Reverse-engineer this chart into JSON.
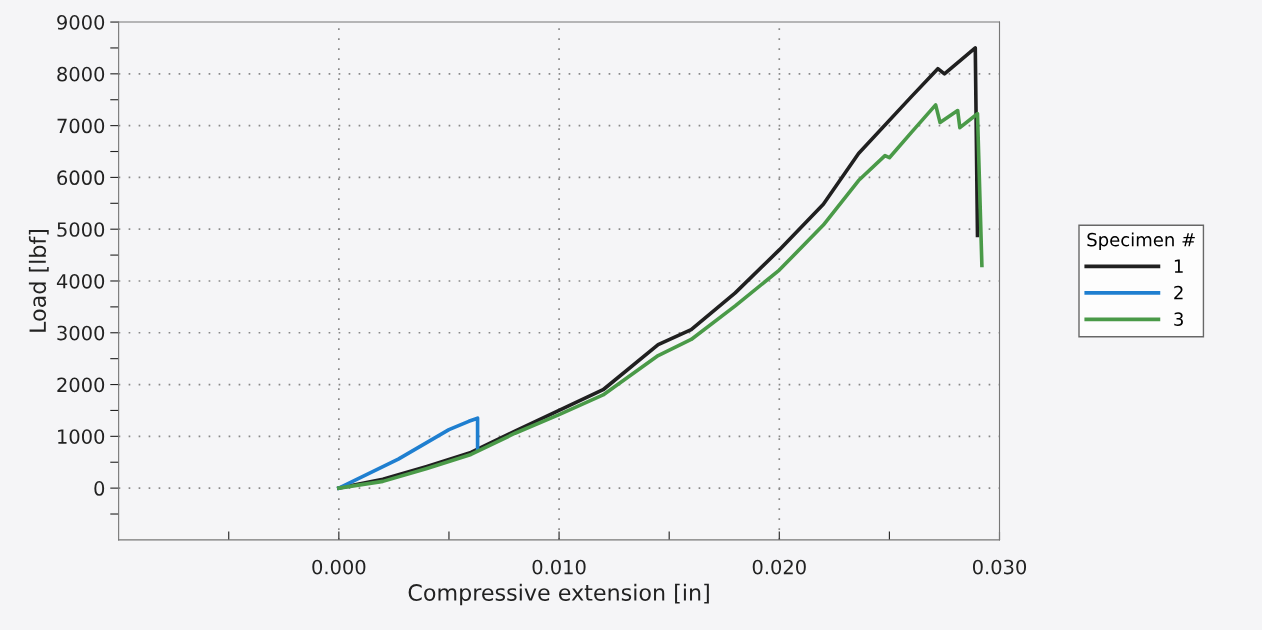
{
  "chart_data": {
    "type": "line",
    "xlabel": "Compressive extension [in]",
    "ylabel": "Load [lbf]",
    "legend_title": "Specimen #",
    "legend": "right",
    "grid": true,
    "line_style": "solid",
    "marker": "none",
    "xlim": [
      -0.01,
      0.03
    ],
    "ylim": [
      -1000,
      9000
    ],
    "xticks": [
      {
        "value": -0.005,
        "label": null
      },
      {
        "value": 0,
        "label": "0.000"
      },
      {
        "value": 0.005,
        "label": null
      },
      {
        "value": 0.01,
        "label": "0.010"
      },
      {
        "value": 0.015,
        "label": null
      },
      {
        "value": 0.02,
        "label": "0.020"
      },
      {
        "value": 0.025,
        "label": null
      },
      {
        "value": 0.03,
        "label": "0.030"
      }
    ],
    "yticks": [
      {
        "value": -500,
        "label": null
      },
      0,
      {
        "value": 500,
        "label": null
      },
      1000,
      {
        "value": 1500,
        "label": null
      },
      2000,
      {
        "value": 2500,
        "label": null
      },
      3000,
      {
        "value": 3500,
        "label": null
      },
      4000,
      {
        "value": 4500,
        "label": null
      },
      5000,
      {
        "value": 5500,
        "label": null
      },
      6000,
      {
        "value": 6500,
        "label": null
      },
      7000,
      {
        "value": 7500,
        "label": null
      },
      8000,
      {
        "value": 8500,
        "label": null
      },
      9000
    ],
    "series": [
      {
        "name": "1",
        "color": "#202020",
        "x": [
          0,
          0.002,
          0.004,
          0.006,
          0.008,
          0.01,
          0.012,
          0.0145,
          0.016,
          0.018,
          0.02,
          0.022,
          0.0236,
          0.026,
          0.0272,
          0.0275,
          0.0289,
          0.029
        ],
        "values": [
          0,
          170,
          420,
          690,
          1100,
          1500,
          1900,
          2770,
          3060,
          3770,
          4600,
          5480,
          6460,
          7560,
          8100,
          8000,
          8500,
          4880
        ]
      },
      {
        "name": "2",
        "color": "#1f7fd0",
        "x": [
          0,
          0.0027,
          0.005,
          0.0059,
          0.0063,
          0.0063
        ],
        "values": [
          0,
          560,
          1130,
          1290,
          1350,
          750
        ]
      },
      {
        "name": "3",
        "color": "#4a9a48",
        "x": [
          0,
          0.002,
          0.004,
          0.006,
          0.008,
          0.01,
          0.012,
          0.0145,
          0.016,
          0.018,
          0.02,
          0.022,
          0.0236,
          0.0248,
          0.025,
          0.026,
          0.0271,
          0.0273,
          0.0281,
          0.0282,
          0.029,
          0.0292
        ],
        "values": [
          0,
          130,
          380,
          650,
          1060,
          1420,
          1800,
          2560,
          2870,
          3520,
          4210,
          5080,
          5940,
          6420,
          6380,
          6870,
          7400,
          7060,
          7290,
          6960,
          7230,
          4300
        ]
      }
    ]
  }
}
